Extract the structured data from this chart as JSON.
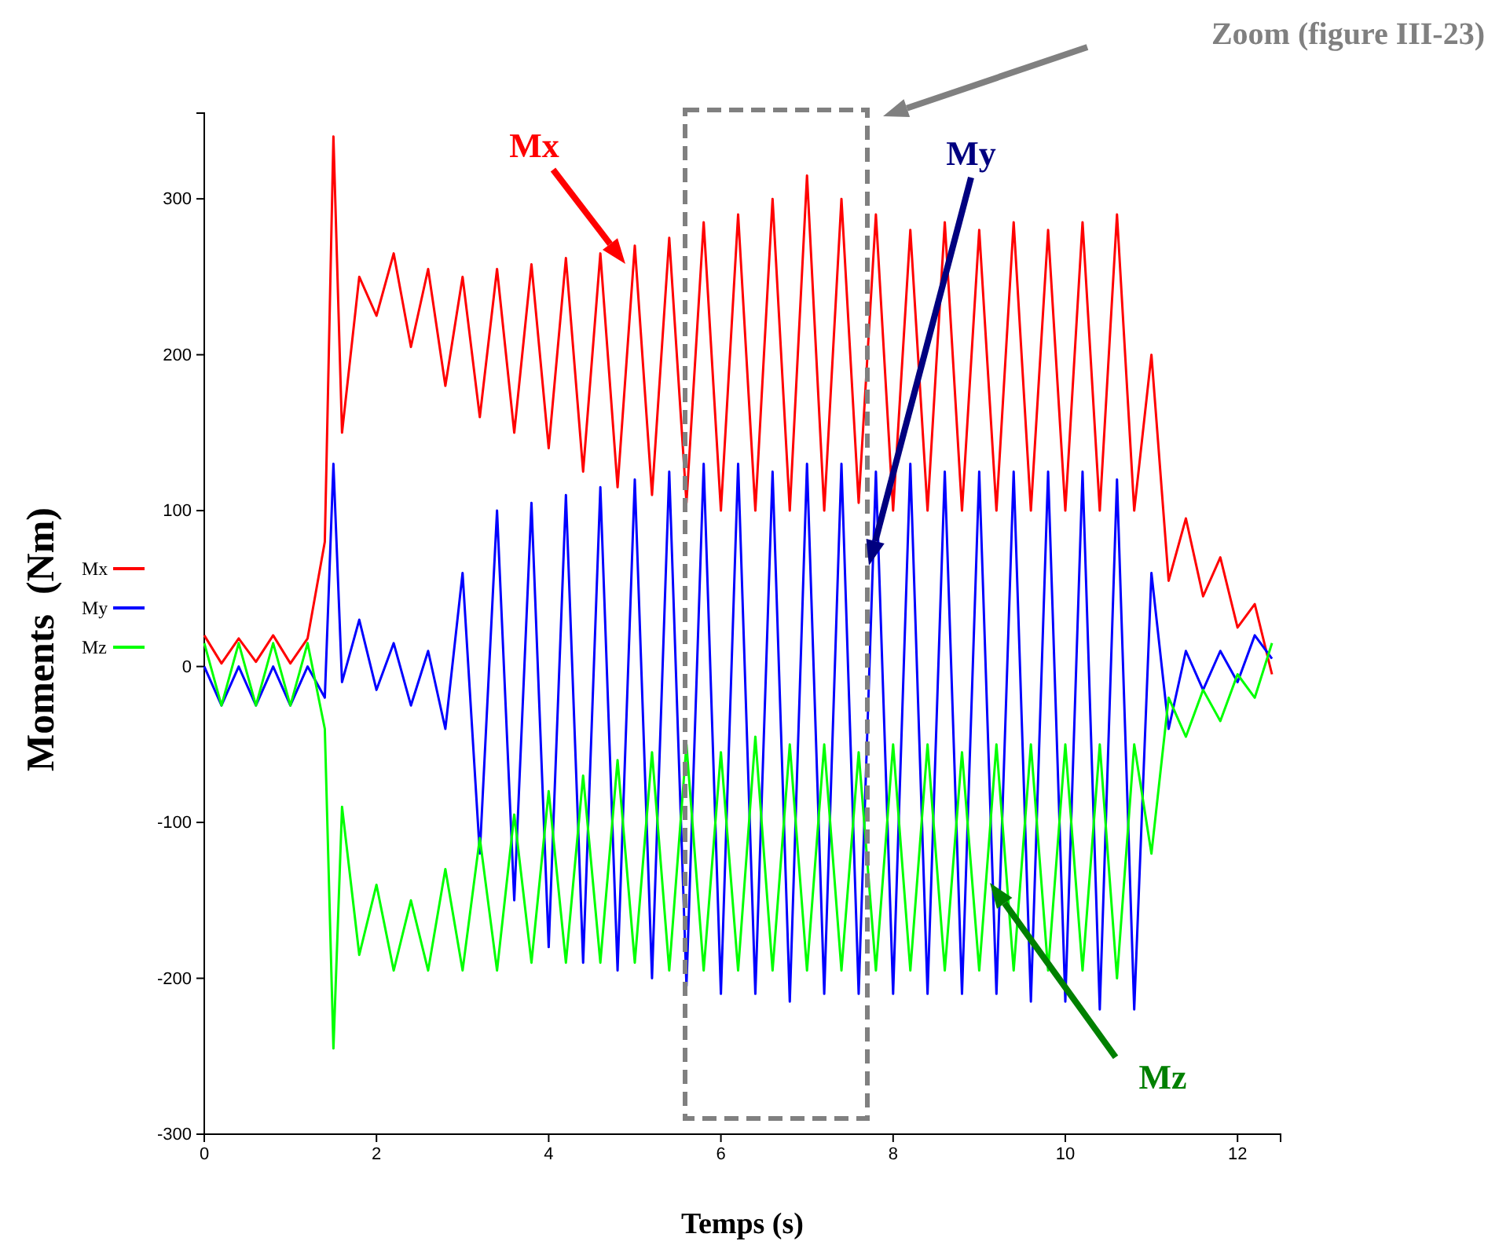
{
  "chart_data": {
    "type": "line",
    "xlabel": "Temps (s)",
    "ylabel": "Moments  (Nm)",
    "xlim": [
      0,
      12.5
    ],
    "xticks": [
      0,
      2,
      4,
      6,
      8,
      10,
      12
    ],
    "ylim": [
      -300,
      355
    ],
    "yticks": [
      -300,
      -200,
      -100,
      0,
      100,
      200,
      300
    ],
    "legend": "left",
    "annotations": [
      "Zoom (figure III-23)"
    ],
    "x": [
      0,
      0.2,
      0.4,
      0.6,
      0.8,
      1.0,
      1.2,
      1.4,
      1.5,
      1.6,
      1.8,
      2.0,
      2.2,
      2.4,
      2.6,
      2.8,
      3.0,
      3.2,
      3.4,
      3.6,
      3.8,
      4.0,
      4.2,
      4.4,
      4.6,
      4.8,
      5.0,
      5.2,
      5.4,
      5.6,
      5.8,
      6.0,
      6.2,
      6.4,
      6.6,
      6.8,
      7.0,
      7.2,
      7.4,
      7.6,
      7.8,
      8.0,
      8.2,
      8.4,
      8.6,
      8.8,
      9.0,
      9.2,
      9.4,
      9.6,
      9.8,
      10.0,
      10.2,
      10.4,
      10.6,
      10.8,
      11.0,
      11.2,
      11.4,
      11.6,
      11.8,
      12.0,
      12.2,
      12.4
    ],
    "series": [
      {
        "name": "Mx",
        "color": "#ff0000",
        "values": [
          20,
          2,
          18,
          3,
          20,
          2,
          18,
          80,
          340,
          150,
          250,
          225,
          265,
          205,
          255,
          180,
          250,
          160,
          255,
          150,
          258,
          140,
          262,
          125,
          265,
          115,
          270,
          110,
          275,
          105,
          285,
          100,
          290,
          100,
          300,
          100,
          315,
          100,
          300,
          105,
          290,
          100,
          280,
          100,
          285,
          100,
          280,
          100,
          285,
          100,
          280,
          100,
          285,
          100,
          290,
          100,
          200,
          55,
          95,
          45,
          70,
          25,
          40,
          -5
        ]
      },
      {
        "name": "My",
        "color": "#0000ff",
        "values": [
          0,
          -25,
          0,
          -25,
          0,
          -25,
          0,
          -20,
          130,
          -10,
          30,
          -15,
          15,
          -25,
          10,
          -40,
          60,
          -120,
          100,
          -150,
          105,
          -180,
          110,
          -190,
          115,
          -195,
          120,
          -200,
          125,
          -205,
          130,
          -210,
          130,
          -210,
          125,
          -215,
          130,
          -210,
          130,
          -210,
          125,
          -210,
          130,
          -210,
          125,
          -210,
          125,
          -210,
          125,
          -215,
          125,
          -215,
          125,
          -220,
          120,
          -220,
          60,
          -40,
          10,
          -15,
          10,
          -10,
          20,
          5
        ]
      },
      {
        "name": "Mz",
        "color": "#00ff00",
        "values": [
          15,
          -25,
          15,
          -25,
          15,
          -25,
          15,
          -40,
          -245,
          -90,
          -185,
          -140,
          -195,
          -150,
          -195,
          -130,
          -195,
          -110,
          -195,
          -95,
          -190,
          -80,
          -190,
          -70,
          -190,
          -60,
          -190,
          -55,
          -195,
          -50,
          -195,
          -55,
          -195,
          -45,
          -195,
          -50,
          -195,
          -50,
          -195,
          -55,
          -195,
          -50,
          -195,
          -50,
          -195,
          -55,
          -195,
          -50,
          -195,
          -50,
          -195,
          -50,
          -195,
          -50,
          -200,
          -50,
          -120,
          -20,
          -45,
          -15,
          -35,
          -5,
          -20,
          15
        ]
      }
    ]
  }
}
